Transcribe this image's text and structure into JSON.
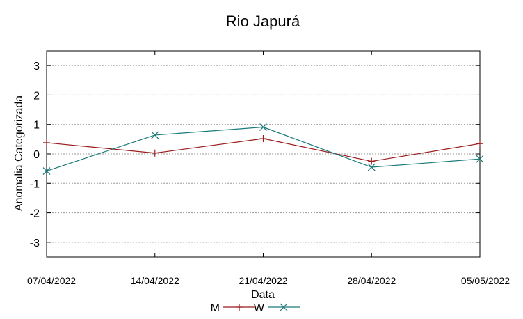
{
  "chart_data": {
    "type": "line",
    "title": "Rio Japurá",
    "xlabel": "Data",
    "ylabel": "Anomalia Categorizada",
    "categories": [
      "07/04/2022",
      "14/04/2022",
      "21/04/2022",
      "28/04/2022",
      "05/05/2022"
    ],
    "y_ticks": [
      3,
      2,
      1,
      0,
      -1,
      -2,
      -3
    ],
    "ylim": [
      -3.5,
      3.5
    ],
    "grid": true,
    "legend_position": "bottom-center",
    "series": [
      {
        "name": "M",
        "color": "#9b1b1b",
        "marker": "plus",
        "values": [
          0.38,
          0.03,
          0.52,
          -0.25,
          0.35
        ]
      },
      {
        "name": "W",
        "color": "#1a7a7a",
        "marker": "cross",
        "values": [
          -0.58,
          0.64,
          0.91,
          -0.45,
          -0.17
        ]
      }
    ]
  }
}
